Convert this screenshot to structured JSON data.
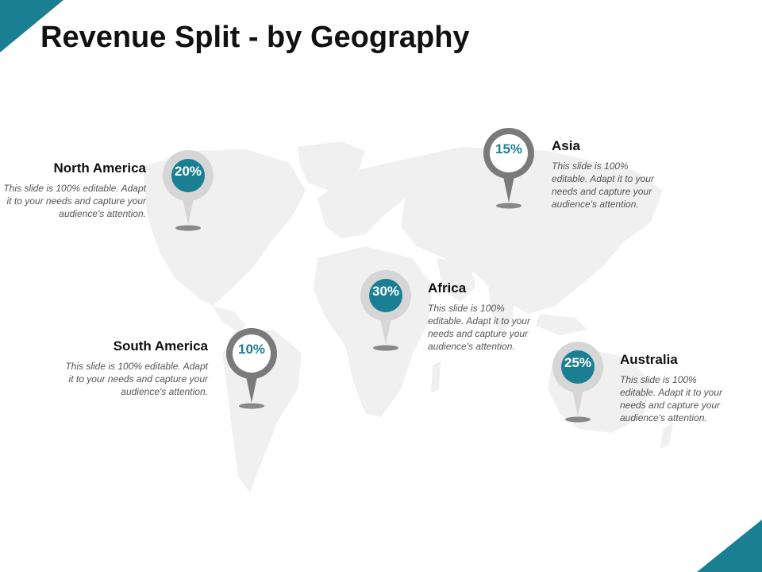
{
  "slide": {
    "title": "Revenue Split - by Geography"
  },
  "colors": {
    "accent": "#1b7f94",
    "pin_gray": "#7a7a7a",
    "pin_light": "#d6d6d6",
    "map": "#f0f0f0"
  },
  "regions": [
    {
      "name": "North America",
      "value": "20%",
      "pin_style": "filled",
      "description": "This slide is 100% editable. Adapt it to your needs and capture your audience's attention."
    },
    {
      "name": "Asia",
      "value": "15%",
      "pin_style": "outlined",
      "description": "This slide is 100% editable. Adapt it to your needs and capture your audience's attention."
    },
    {
      "name": "Africa",
      "value": "30%",
      "pin_style": "filled",
      "description": "This slide is 100% editable. Adapt it to your needs and capture your audience's attention."
    },
    {
      "name": "South America",
      "value": "10%",
      "pin_style": "outlined",
      "description": "This slide is 100% editable. Adapt it to your needs and capture your audience's attention."
    },
    {
      "name": "Australia",
      "value": "25%",
      "pin_style": "filled",
      "description": "This slide is 100% editable. Adapt it to your needs and capture your audience's attention."
    }
  ]
}
